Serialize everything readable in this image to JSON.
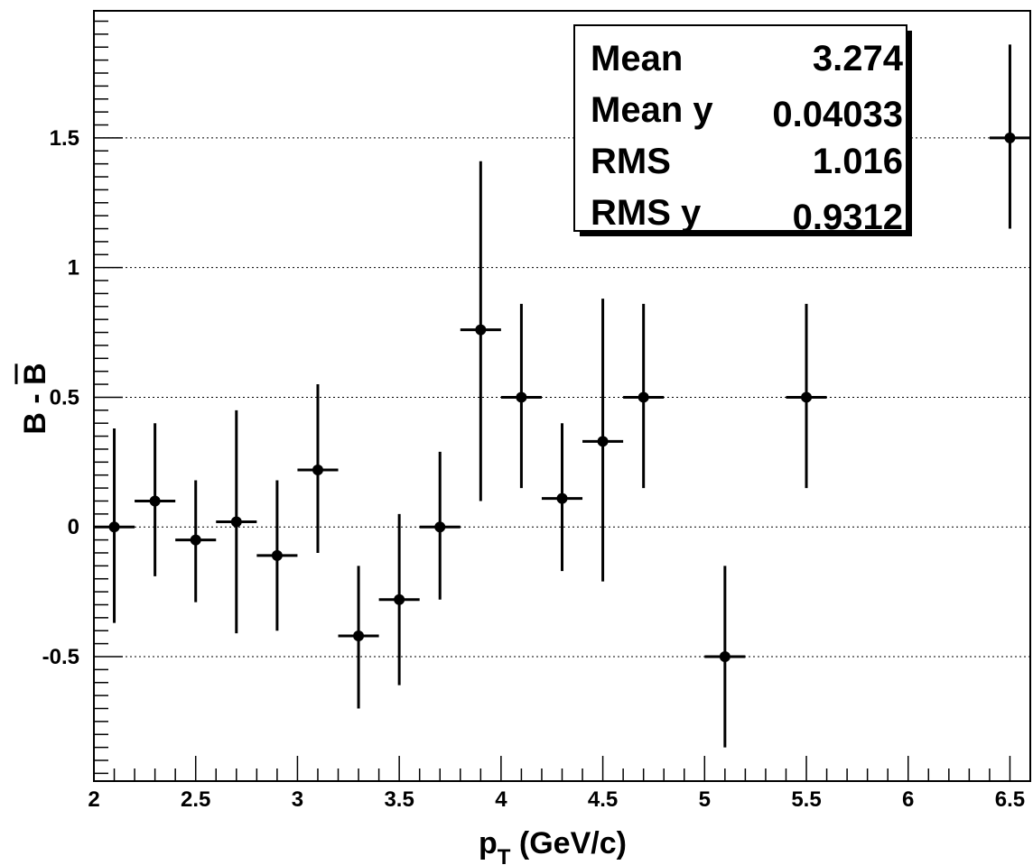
{
  "chart_data": {
    "type": "scatter",
    "xlabel": "p",
    "xlabel_subscript": "T",
    "xlabel_unit": " (GeV/c)",
    "ylabel": "B - B",
    "ylabel_overline_index": 4,
    "xlim": [
      2.0,
      6.6
    ],
    "ylim": [
      -0.98,
      1.99
    ],
    "x_tick_labels": [
      "2",
      "2.5",
      "3",
      "3.5",
      "4",
      "4.5",
      "5",
      "5.5",
      "6",
      "6.5"
    ],
    "x_ticks": [
      2,
      2.5,
      3,
      3.5,
      4,
      4.5,
      5,
      5.5,
      6,
      6.5
    ],
    "y_tick_labels": [
      "-0.5",
      "0",
      "0.5",
      "1",
      "1.5"
    ],
    "y_ticks": [
      -0.5,
      0,
      0.5,
      1,
      1.5
    ],
    "grid": {
      "x": false,
      "y": true,
      "style": "dotted"
    },
    "points": [
      {
        "x": 2.1,
        "y": 0.0,
        "xerr": 0.1,
        "ylow": -0.37,
        "yhigh": 0.38
      },
      {
        "x": 2.3,
        "y": 0.1,
        "xerr": 0.1,
        "ylow": -0.19,
        "yhigh": 0.4
      },
      {
        "x": 2.5,
        "y": -0.05,
        "xerr": 0.1,
        "ylow": -0.29,
        "yhigh": 0.18
      },
      {
        "x": 2.7,
        "y": 0.02,
        "xerr": 0.1,
        "ylow": -0.41,
        "yhigh": 0.45
      },
      {
        "x": 2.9,
        "y": -0.11,
        "xerr": 0.1,
        "ylow": -0.4,
        "yhigh": 0.18
      },
      {
        "x": 3.1,
        "y": 0.22,
        "xerr": 0.1,
        "ylow": -0.1,
        "yhigh": 0.55
      },
      {
        "x": 3.3,
        "y": -0.42,
        "xerr": 0.1,
        "ylow": -0.7,
        "yhigh": -0.15
      },
      {
        "x": 3.5,
        "y": -0.28,
        "xerr": 0.1,
        "ylow": -0.61,
        "yhigh": 0.05
      },
      {
        "x": 3.7,
        "y": 0.0,
        "xerr": 0.1,
        "ylow": -0.28,
        "yhigh": 0.29
      },
      {
        "x": 3.9,
        "y": 0.76,
        "xerr": 0.1,
        "ylow": 0.1,
        "yhigh": 1.41
      },
      {
        "x": 4.1,
        "y": 0.5,
        "xerr": 0.1,
        "ylow": 0.15,
        "yhigh": 0.86
      },
      {
        "x": 4.3,
        "y": 0.11,
        "xerr": 0.1,
        "ylow": -0.17,
        "yhigh": 0.4
      },
      {
        "x": 4.5,
        "y": 0.33,
        "xerr": 0.1,
        "ylow": -0.21,
        "yhigh": 0.88
      },
      {
        "x": 4.7,
        "y": 0.5,
        "xerr": 0.1,
        "ylow": 0.15,
        "yhigh": 0.86
      },
      {
        "x": 5.1,
        "y": -0.5,
        "xerr": 0.1,
        "ylow": -0.85,
        "yhigh": -0.15
      },
      {
        "x": 5.5,
        "y": 0.5,
        "xerr": 0.1,
        "ylow": 0.15,
        "yhigh": 0.86
      },
      {
        "x": 6.5,
        "y": 1.5,
        "xerr": 0.1,
        "ylow": 1.15,
        "yhigh": 1.86
      }
    ],
    "legend_placement": "top-right",
    "stats_box": {
      "rows": [
        {
          "label": "Mean",
          "value": "3.274"
        },
        {
          "label": "Mean y",
          "value": "0.04033"
        },
        {
          "label": "RMS",
          "value": "1.016"
        },
        {
          "label": "RMS y",
          "value": "0.9312"
        }
      ]
    },
    "colors": {
      "marker": "#000000",
      "frame": "#000000",
      "grid": "#000000",
      "background": "#ffffff"
    }
  }
}
